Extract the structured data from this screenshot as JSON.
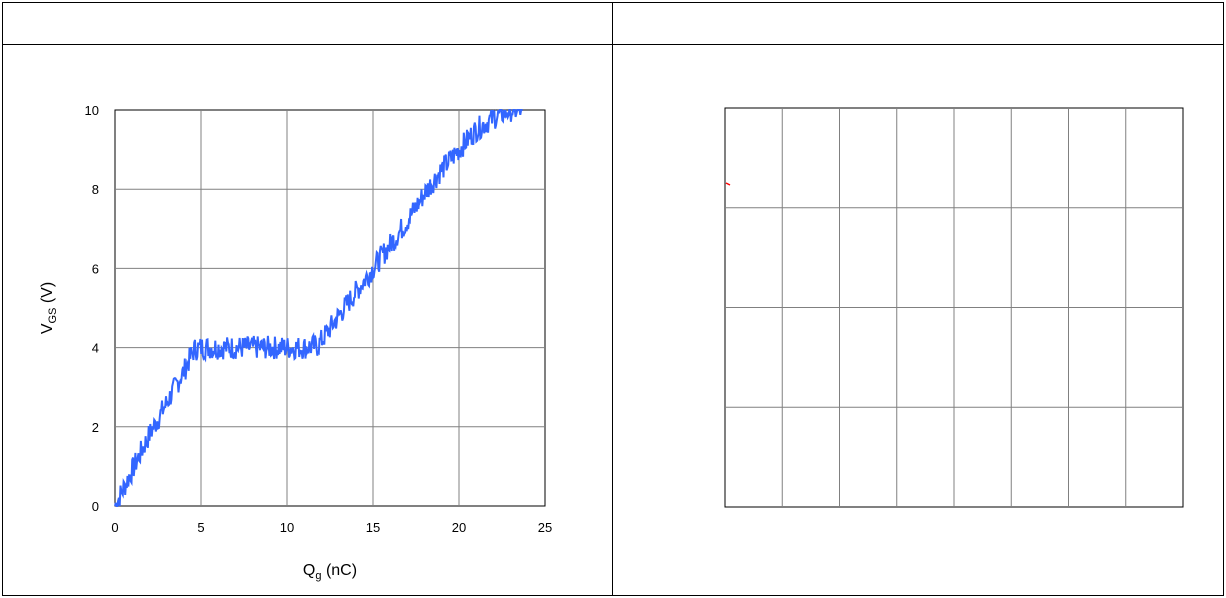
{
  "chart_data": [
    {
      "type": "line",
      "xlabel_main": "Q",
      "xlabel_sub": "g",
      "xlabel_unit": " (nC)",
      "ylabel_main": "V",
      "ylabel_sub": "GS",
      "ylabel_unit": " (V)",
      "xlim": [
        0,
        25
      ],
      "ylim": [
        0,
        10
      ],
      "xticks": [
        "0",
        "5",
        "10",
        "15",
        "20",
        "25"
      ],
      "yticks": [
        "0",
        "2",
        "4",
        "6",
        "8",
        "10"
      ],
      "grid": true,
      "series": [
        {
          "color": "#3366ff",
          "noise": 0.3,
          "x": [
            0,
            1,
            2,
            3,
            4,
            4.6,
            5,
            6,
            7,
            8,
            9,
            10,
            11,
            11.8,
            13,
            14,
            15,
            16,
            17,
            18,
            19,
            20,
            21,
            22,
            23,
            23.7
          ],
          "y": [
            0,
            0.9,
            1.8,
            2.6,
            3.4,
            3.95,
            4.0,
            4.0,
            4.0,
            4.0,
            4.0,
            4.0,
            4.0,
            4.05,
            4.8,
            5.4,
            6.0,
            6.6,
            7.2,
            7.9,
            8.5,
            9.0,
            9.5,
            9.8,
            10.0,
            10.0
          ]
        }
      ]
    },
    {
      "type": "line",
      "grid": true,
      "columns": 8,
      "rows": 4,
      "series": [
        {
          "color": "#ff0000",
          "note_visible": "short red mark near top-left edge"
        }
      ]
    }
  ]
}
